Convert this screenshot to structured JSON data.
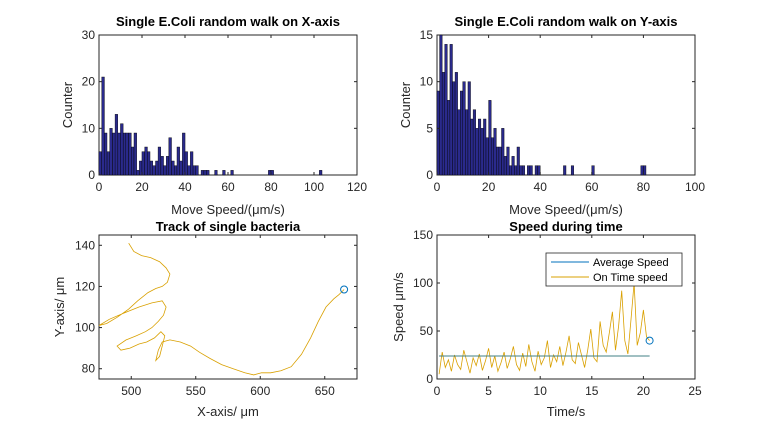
{
  "chart_data": [
    {
      "type": "bar",
      "title": "Single E.Coli random walk on X-axis",
      "xlabel": "Move Speed/(μm/s)",
      "ylabel": "Counter",
      "xlim": [
        0,
        120
      ],
      "ylim": [
        0,
        30
      ],
      "xticks": [
        "0",
        "20",
        "40",
        "60",
        "80",
        "100",
        "120"
      ],
      "yticks": [
        "0",
        "10",
        "20",
        "30"
      ],
      "bin_width": 1.25,
      "bar_color": "#2a2a8c",
      "edge_color": "#000000",
      "bins": [
        {
          "x": 0.6,
          "count": 5
        },
        {
          "x": 1.9,
          "count": 21
        },
        {
          "x": 3.1,
          "count": 9
        },
        {
          "x": 4.4,
          "count": 5
        },
        {
          "x": 5.6,
          "count": 10
        },
        {
          "x": 6.9,
          "count": 9
        },
        {
          "x": 8.1,
          "count": 13
        },
        {
          "x": 9.4,
          "count": 9
        },
        {
          "x": 10.6,
          "count": 11
        },
        {
          "x": 11.9,
          "count": 9
        },
        {
          "x": 13.1,
          "count": 9
        },
        {
          "x": 14.4,
          "count": 9
        },
        {
          "x": 15.6,
          "count": 6
        },
        {
          "x": 16.9,
          "count": 9
        },
        {
          "x": 18.1,
          "count": 1
        },
        {
          "x": 19.4,
          "count": 3
        },
        {
          "x": 20.6,
          "count": 5
        },
        {
          "x": 21.9,
          "count": 6
        },
        {
          "x": 23.1,
          "count": 5
        },
        {
          "x": 24.4,
          "count": 3
        },
        {
          "x": 25.6,
          "count": 2
        },
        {
          "x": 26.9,
          "count": 3
        },
        {
          "x": 28.1,
          "count": 6
        },
        {
          "x": 29.4,
          "count": 4
        },
        {
          "x": 30.6,
          "count": 2
        },
        {
          "x": 31.9,
          "count": 4
        },
        {
          "x": 33.1,
          "count": 8
        },
        {
          "x": 34.4,
          "count": 3
        },
        {
          "x": 35.6,
          "count": 2
        },
        {
          "x": 36.9,
          "count": 6
        },
        {
          "x": 38.1,
          "count": 3
        },
        {
          "x": 39.4,
          "count": 9
        },
        {
          "x": 40.6,
          "count": 5
        },
        {
          "x": 41.9,
          "count": 2
        },
        {
          "x": 43.1,
          "count": 5
        },
        {
          "x": 44.4,
          "count": 2
        },
        {
          "x": 45.6,
          "count": 2
        },
        {
          "x": 48.1,
          "count": 1
        },
        {
          "x": 49.4,
          "count": 1
        },
        {
          "x": 50.6,
          "count": 1
        },
        {
          "x": 54.4,
          "count": 1
        },
        {
          "x": 58.1,
          "count": 1
        },
        {
          "x": 61.9,
          "count": 1
        },
        {
          "x": 79.4,
          "count": 1
        },
        {
          "x": 80.6,
          "count": 1
        },
        {
          "x": 103.1,
          "count": 1
        }
      ]
    },
    {
      "type": "bar",
      "title": "Single E.Coli random walk on Y-axis",
      "xlabel": "Move Speed/(μm/s)",
      "ylabel": "Counter",
      "xlim": [
        0,
        100
      ],
      "ylim": [
        0,
        15
      ],
      "xticks": [
        "0",
        "20",
        "40",
        "60",
        "80",
        "100"
      ],
      "yticks": [
        "0",
        "5",
        "10",
        "15"
      ],
      "bin_width": 1.0,
      "bar_color": "#2a2a8c",
      "edge_color": "#000000",
      "bins": [
        {
          "x": 0.5,
          "count": 9
        },
        {
          "x": 1.5,
          "count": 15
        },
        {
          "x": 2.5,
          "count": 11
        },
        {
          "x": 3.5,
          "count": 14
        },
        {
          "x": 4.5,
          "count": 8
        },
        {
          "x": 5.5,
          "count": 14
        },
        {
          "x": 6.5,
          "count": 10
        },
        {
          "x": 7.5,
          "count": 11
        },
        {
          "x": 8.5,
          "count": 7
        },
        {
          "x": 9.5,
          "count": 9
        },
        {
          "x": 10.5,
          "count": 10
        },
        {
          "x": 11.5,
          "count": 7
        },
        {
          "x": 12.5,
          "count": 10
        },
        {
          "x": 13.5,
          "count": 6
        },
        {
          "x": 14.5,
          "count": 7
        },
        {
          "x": 15.5,
          "count": 5
        },
        {
          "x": 16.5,
          "count": 6
        },
        {
          "x": 17.5,
          "count": 5
        },
        {
          "x": 18.5,
          "count": 6
        },
        {
          "x": 19.5,
          "count": 4
        },
        {
          "x": 20.5,
          "count": 8
        },
        {
          "x": 21.5,
          "count": 4
        },
        {
          "x": 22.5,
          "count": 5
        },
        {
          "x": 23.5,
          "count": 3
        },
        {
          "x": 24.5,
          "count": 3
        },
        {
          "x": 25.5,
          "count": 5
        },
        {
          "x": 26.5,
          "count": 2
        },
        {
          "x": 27.5,
          "count": 3
        },
        {
          "x": 28.5,
          "count": 1
        },
        {
          "x": 29.5,
          "count": 2
        },
        {
          "x": 30.5,
          "count": 1
        },
        {
          "x": 31.5,
          "count": 3
        },
        {
          "x": 32.5,
          "count": 1
        },
        {
          "x": 33.5,
          "count": 1
        },
        {
          "x": 35.5,
          "count": 1
        },
        {
          "x": 36.5,
          "count": 1
        },
        {
          "x": 38.5,
          "count": 1
        },
        {
          "x": 39.5,
          "count": 1
        },
        {
          "x": 49.5,
          "count": 1
        },
        {
          "x": 52.5,
          "count": 1
        },
        {
          "x": 60.5,
          "count": 1
        },
        {
          "x": 79.5,
          "count": 1
        },
        {
          "x": 80.5,
          "count": 1
        }
      ]
    },
    {
      "type": "line",
      "title": "Track of single bacteria",
      "xlabel": "X-axis/ μm",
      "ylabel": "Y-axis/ μm",
      "xlim": [
        475,
        675
      ],
      "ylim": [
        75,
        145
      ],
      "xticks": [
        "500",
        "550",
        "600",
        "650"
      ],
      "yticks": [
        "80",
        "100",
        "120",
        "140"
      ],
      "line_color": "#d9a000",
      "marker_color": "#0072bd",
      "end_point": {
        "x": 665,
        "y": 118.5
      },
      "series": [
        {
          "points": [
            [
              498,
              141
            ],
            [
              502,
              137
            ],
            [
              508,
              135
            ],
            [
              515,
              134
            ],
            [
              522,
              132
            ],
            [
              527,
              129
            ],
            [
              530,
              126
            ],
            [
              528,
              122
            ],
            [
              524,
              120
            ],
            [
              519,
              119
            ],
            [
              513,
              117
            ],
            [
              505,
              113
            ],
            [
              498,
              109
            ],
            [
              489,
              105
            ],
            [
              481,
              102
            ],
            [
              475,
              101
            ],
            [
              483,
              104
            ],
            [
              494,
              107
            ],
            [
              506,
              110
            ],
            [
              516,
              112
            ],
            [
              524,
              113
            ],
            [
              527,
              110
            ],
            [
              525,
              106
            ],
            [
              521,
              103
            ],
            [
              516,
              100
            ],
            [
              511,
              98
            ],
            [
              504,
              96
            ],
            [
              496,
              94
            ],
            [
              489,
              91
            ],
            [
              492,
              89
            ],
            [
              499,
              90
            ],
            [
              506,
              92
            ],
            [
              512,
              93
            ],
            [
              518,
              95
            ],
            [
              523,
              98
            ],
            [
              526,
              96
            ],
            [
              524,
              91
            ],
            [
              522,
              86
            ],
            [
              519,
              84
            ],
            [
              521,
              89
            ],
            [
              524,
              93
            ],
            [
              530,
              94
            ],
            [
              538,
              93
            ],
            [
              546,
              91
            ],
            [
              553,
              88
            ],
            [
              561,
              85
            ],
            [
              570,
              82
            ],
            [
              579,
              80
            ],
            [
              588,
              78
            ],
            [
              595,
              77
            ],
            [
              601,
              78
            ],
            [
              608,
              78
            ],
            [
              616,
              79
            ],
            [
              624,
              81
            ],
            [
              632,
              87
            ],
            [
              639,
              95
            ],
            [
              645,
              103
            ],
            [
              651,
              110
            ],
            [
              657,
              114
            ],
            [
              661,
              116
            ],
            [
              665,
              118.5
            ]
          ]
        }
      ]
    },
    {
      "type": "line",
      "title": "Speed during time",
      "xlabel": "Time/s",
      "ylabel": "Speed μm/s",
      "xlim": [
        0,
        25
      ],
      "ylim": [
        0,
        150
      ],
      "xticks": [
        "0",
        "5",
        "10",
        "15",
        "20",
        "25"
      ],
      "yticks": [
        "0",
        "50",
        "100",
        "150"
      ],
      "legend_position": "top-right",
      "end_point": {
        "x": 20.6,
        "y": 40
      },
      "marker_color": "#0072bd",
      "series": [
        {
          "name": "Average Speed",
          "color": "#0072bd",
          "x": [
            0.2,
            20.6
          ],
          "values": [
            24,
            24
          ]
        },
        {
          "name": "On Time speed",
          "color": "#d9a000",
          "x": [
            0.2,
            0.5,
            0.8,
            1.1,
            1.4,
            1.7,
            2.0,
            2.3,
            2.6,
            2.9,
            3.2,
            3.5,
            3.8,
            4.1,
            4.4,
            4.7,
            5.0,
            5.3,
            5.6,
            5.9,
            6.2,
            6.5,
            6.8,
            7.1,
            7.4,
            7.7,
            8.0,
            8.3,
            8.6,
            8.9,
            9.2,
            9.5,
            9.8,
            10.1,
            10.4,
            10.7,
            11.0,
            11.3,
            11.6,
            11.9,
            12.2,
            12.5,
            12.8,
            13.1,
            13.4,
            13.7,
            14.0,
            14.3,
            14.6,
            14.9,
            15.2,
            15.5,
            15.8,
            16.1,
            16.4,
            16.7,
            17.0,
            17.3,
            17.6,
            17.9,
            18.2,
            18.5,
            18.8,
            19.1,
            19.4,
            19.7,
            20.0,
            20.3,
            20.6
          ],
          "values": [
            5,
            28,
            12,
            20,
            8,
            25,
            15,
            10,
            30,
            18,
            6,
            22,
            14,
            26,
            9,
            19,
            32,
            12,
            24,
            8,
            17,
            28,
            11,
            21,
            34,
            15,
            9,
            27,
            13,
            36,
            18,
            8,
            29,
            15,
            22,
            40,
            12,
            25,
            18,
            34,
            14,
            28,
            45,
            20,
            16,
            38,
            25,
            12,
            30,
            52,
            22,
            18,
            60,
            35,
            28,
            48,
            70,
            30,
            55,
            92,
            40,
            26,
            62,
            100,
            35,
            48,
            72,
            44,
            40
          ]
        }
      ]
    }
  ]
}
